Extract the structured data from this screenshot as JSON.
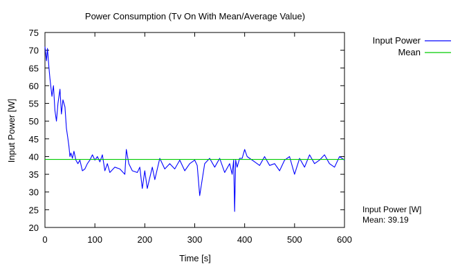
{
  "chart_data": {
    "type": "line",
    "title": "Power Consumption (Tv On With Mean/Average Value)",
    "xlabel": "Time [s]",
    "ylabel": "Input Power [W]",
    "xlim": [
      0,
      600
    ],
    "ylim": [
      20,
      75
    ],
    "xticks": [
      "0",
      "100",
      "200",
      "300",
      "400",
      "500",
      "600"
    ],
    "yticks": [
      "20",
      "25",
      "30",
      "35",
      "40",
      "45",
      "50",
      "55",
      "60",
      "65",
      "70",
      "75"
    ],
    "grid": false,
    "legend_position": "top-right outside",
    "series": [
      {
        "name": "Input Power",
        "color": "#0000ff",
        "x": [
          0,
          3,
          5,
          8,
          10,
          14,
          17,
          20,
          23,
          26,
          30,
          33,
          36,
          40,
          43,
          46,
          48,
          50,
          52,
          55,
          58,
          62,
          66,
          70,
          75,
          80,
          85,
          90,
          95,
          100,
          105,
          110,
          115,
          120,
          125,
          130,
          140,
          150,
          160,
          163,
          168,
          175,
          185,
          190,
          195,
          200,
          205,
          210,
          215,
          220,
          230,
          240,
          250,
          260,
          270,
          280,
          290,
          300,
          305,
          310,
          320,
          330,
          340,
          350,
          360,
          370,
          375,
          378,
          380,
          382,
          385,
          390,
          395,
          400,
          405,
          410,
          420,
          430,
          440,
          450,
          460,
          470,
          480,
          490,
          500,
          510,
          520,
          530,
          540,
          550,
          560,
          570,
          580,
          590,
          600
        ],
        "y": [
          71,
          67,
          70.5,
          65,
          62,
          57,
          60,
          53,
          50,
          55,
          59,
          52,
          56,
          54,
          48,
          45,
          43,
          40,
          41,
          39.5,
          41.5,
          39,
          38,
          39,
          36,
          36.5,
          38,
          39,
          40.5,
          39,
          40,
          38.5,
          40.5,
          36,
          38,
          35.5,
          37,
          36.5,
          35,
          42,
          38,
          36,
          35.5,
          37,
          31,
          36,
          31,
          34,
          37,
          33.5,
          39.5,
          36.5,
          38,
          36.5,
          39,
          36,
          38,
          39,
          37.5,
          29,
          38,
          39.5,
          37,
          39.5,
          35.5,
          38,
          35,
          39,
          24.5,
          39,
          37,
          39.5,
          39.5,
          42,
          40,
          39.5,
          38.5,
          37.5,
          40,
          37.5,
          38,
          36,
          39,
          40,
          35,
          39.5,
          37,
          40.5,
          38,
          39,
          40.5,
          38,
          37,
          40,
          39
        ]
      },
      {
        "name": "Mean",
        "color": "#00cc00",
        "x": [
          0,
          600
        ],
        "y": [
          39.19,
          39.19
        ]
      }
    ],
    "annotation": {
      "line1": "Input Power [W]",
      "line2": "Mean: 39.19"
    }
  }
}
